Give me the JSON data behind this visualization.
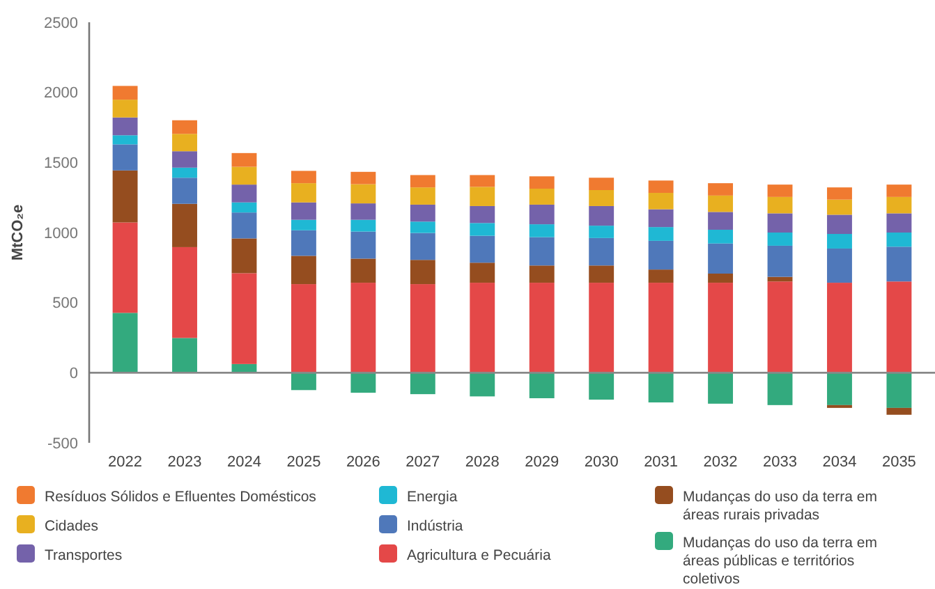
{
  "chart_data": {
    "type": "bar",
    "stacked": true,
    "ylabel": "MtCO₂e",
    "categories": [
      "2022",
      "2023",
      "2024",
      "2025",
      "2026",
      "2027",
      "2028",
      "2029",
      "2030",
      "2031",
      "2032",
      "2033",
      "2034",
      "2035"
    ],
    "ylim": [
      -500,
      2500
    ],
    "yticks": [
      -500,
      0,
      500,
      1000,
      1500,
      2000,
      2500
    ],
    "grid": false,
    "legend": "bottom",
    "ref_lines": [
      {
        "axis": "y",
        "value": 0,
        "color": "#888888"
      }
    ],
    "series": [
      {
        "name": "Mudanças do uso da terra em áreas públicas e territórios coletivos",
        "color": "#33aa7e",
        "values": [
          427,
          248,
          62,
          -124,
          -143,
          -153,
          -169,
          -182,
          -192,
          -212,
          -221,
          -231,
          -231,
          -251
        ]
      },
      {
        "name": "Agricultura e Pecuária",
        "color": "#e44848",
        "values": [
          645,
          648,
          648,
          632,
          642,
          632,
          642,
          642,
          642,
          642,
          642,
          651,
          642,
          651
        ]
      },
      {
        "name": "Mudanças do uso da terra em áreas rurais privadas",
        "color": "#954d1f",
        "values": [
          371,
          309,
          248,
          202,
          172,
          173,
          143,
          123,
          123,
          94,
          65,
          33,
          -20,
          -49
        ]
      },
      {
        "name": "Indústria",
        "color": "#4f78ba",
        "values": [
          186,
          186,
          185,
          182,
          193,
          192,
          192,
          202,
          196,
          205,
          215,
          222,
          244,
          248
        ]
      },
      {
        "name": "Energia",
        "color": "#1fb8d4",
        "values": [
          65,
          72,
          72,
          75,
          84,
          81,
          91,
          92,
          88,
          98,
          98,
          94,
          104,
          101
        ]
      },
      {
        "name": "Transportes",
        "color": "#7462aa",
        "values": [
          127,
          117,
          127,
          124,
          117,
          121,
          121,
          140,
          140,
          127,
          127,
          137,
          137,
          137
        ]
      },
      {
        "name": "Cidades",
        "color": "#e8b020",
        "values": [
          127,
          124,
          127,
          137,
          137,
          123,
          137,
          114,
          114,
          117,
          117,
          117,
          108,
          117
        ]
      },
      {
        "name": "Resíduos Sólidos e Efluentes Domésticos",
        "color": "#f07a30",
        "values": [
          98,
          97,
          98,
          88,
          88,
          88,
          84,
          88,
          88,
          88,
          88,
          88,
          87,
          88
        ]
      }
    ]
  }
}
